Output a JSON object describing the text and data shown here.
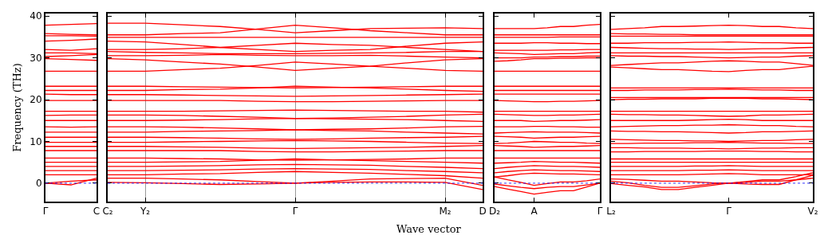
{
  "chart_data": [
    {
      "type": "line",
      "color": "#ff0000",
      "ylabel": "Frequency (THz)",
      "ylim": [
        -4.4,
        40.6
      ],
      "yticks": [
        0,
        10,
        20,
        30,
        40
      ],
      "categories": [
        "Γ",
        null,
        "C"
      ],
      "ref_lines": [
        {
          "axis": "y",
          "value": 0,
          "color": "#0000ff",
          "line_style": "dotted"
        }
      ],
      "series": [
        {
          "values": [
            37.8,
            38,
            38.2
          ]
        },
        {
          "values": [
            35.8,
            35.6,
            35.5
          ]
        },
        {
          "values": [
            35.3,
            35.3,
            35.2
          ]
        },
        {
          "values": [
            34,
            34.2,
            34.5
          ]
        },
        {
          "values": [
            32,
            31.8,
            32.2
          ]
        },
        {
          "values": [
            31.2,
            31.2,
            31
          ]
        },
        {
          "values": [
            30.3,
            30.5,
            30.8
          ]
        },
        {
          "values": [
            29.8,
            29.6,
            29.4
          ]
        },
        {
          "values": [
            26.8,
            26.8,
            26.8
          ]
        },
        {
          "values": [
            23.2,
            23.2,
            23.2
          ]
        },
        {
          "values": [
            22.2,
            22.2,
            22.2
          ]
        },
        {
          "values": [
            21.3,
            21.2,
            21.2
          ]
        },
        {
          "values": [
            19.8,
            19.8,
            19.8
          ]
        },
        {
          "values": [
            17.2,
            17.2,
            17.2
          ]
        },
        {
          "values": [
            16.2,
            16.3,
            16.3
          ]
        },
        {
          "values": [
            15,
            15,
            15
          ]
        },
        {
          "values": [
            13.5,
            13.4,
            13.5
          ]
        },
        {
          "values": [
            12.2,
            12.2,
            12.2
          ]
        },
        {
          "values": [
            11,
            11,
            11
          ]
        },
        {
          "values": [
            9.8,
            9.8,
            9.8
          ]
        },
        {
          "values": [
            8.8,
            8.8,
            8.8
          ]
        },
        {
          "values": [
            7.8,
            7.8,
            7.8
          ]
        },
        {
          "values": [
            6,
            6,
            6
          ]
        },
        {
          "values": [
            5,
            5,
            5
          ]
        },
        {
          "values": [
            4,
            4,
            4
          ]
        },
        {
          "values": [
            3,
            3,
            3
          ]
        },
        {
          "values": [
            2,
            2,
            2
          ]
        },
        {
          "values": [
            0,
            -0.4,
            1.2
          ]
        },
        {
          "values": [
            0,
            0.5,
            0.8
          ]
        }
      ]
    },
    {
      "type": "line",
      "color": "#ff0000",
      "xlabel": "Wave vector",
      "tick_labels": "x",
      "ylim": [
        -4.4,
        40.6
      ],
      "yticks": [
        0,
        10,
        20,
        30,
        40
      ],
      "categories": [
        "C₂",
        "Y₂",
        null,
        null,
        null,
        "Γ",
        null,
        null,
        null,
        "M₂",
        "D"
      ],
      "grid": "x",
      "ref_lines": [
        {
          "axis": "y",
          "value": 0,
          "color": "#0000ff",
          "line_style": "dotted"
        }
      ],
      "series": [
        {
          "values": [
            38.3,
            38.3,
            37.9,
            37.5,
            36.8,
            36,
            36.5,
            37,
            37.1,
            37.2,
            37
          ]
        },
        {
          "values": [
            35.5,
            35.5,
            35.8,
            36,
            36.9,
            37.8,
            37.2,
            36.5,
            36,
            35.5,
            35.5
          ]
        },
        {
          "values": [
            34.9,
            34.9,
            34.9,
            34.9,
            34.9,
            34.9,
            34.9,
            34.9,
            34.9,
            34.9,
            34.9
          ]
        },
        {
          "values": [
            34,
            33.8,
            33.2,
            32.5,
            32,
            31.5,
            31.8,
            32,
            32.8,
            33.5,
            33.8
          ]
        },
        {
          "values": [
            32,
            32,
            32.2,
            32.5,
            33,
            33.5,
            33.2,
            33,
            32.5,
            32,
            31.5
          ]
        },
        {
          "values": [
            31.5,
            31.3,
            31.2,
            31,
            31,
            31,
            31.1,
            31.2,
            31.3,
            31.5,
            31.5
          ]
        },
        {
          "values": [
            30.5,
            30.5,
            30.6,
            30.8,
            30.6,
            30.5,
            30.5,
            30.6,
            30.4,
            30.2,
            30
          ]
        },
        {
          "values": [
            29.8,
            29.5,
            29,
            28.5,
            27.8,
            27,
            27.5,
            28,
            28.8,
            29.5,
            29.8
          ]
        },
        {
          "values": [
            26.8,
            26.8,
            27.2,
            27.5,
            28.2,
            29,
            28.5,
            28,
            27.5,
            27,
            26.8
          ]
        },
        {
          "values": [
            23.2,
            23.2,
            23.1,
            23,
            22.9,
            22.8,
            22.9,
            23,
            23.1,
            23.2,
            23.2
          ]
        },
        {
          "values": [
            22.2,
            22.2,
            22.4,
            22.5,
            22.8,
            23.2,
            23,
            22.8,
            22.5,
            22.2,
            22
          ]
        },
        {
          "values": [
            21.2,
            21.2,
            21.1,
            21,
            20.9,
            20.8,
            20.9,
            21,
            21.1,
            21.2,
            21.3
          ]
        },
        {
          "values": [
            19.8,
            19.8,
            19.8,
            19.8,
            19.6,
            19.5,
            19.5,
            19.6,
            19.7,
            19.8,
            19.8
          ]
        },
        {
          "values": [
            17.2,
            17.2,
            17.2,
            17.3,
            17.4,
            17.5,
            17.4,
            17.3,
            17.2,
            17.2,
            17
          ]
        },
        {
          "values": [
            16.3,
            16.3,
            16.2,
            16,
            15.8,
            15.5,
            15.6,
            15.8,
            16,
            16.3,
            16.5
          ]
        },
        {
          "values": [
            15,
            15,
            15.1,
            15.2,
            15.4,
            15.5,
            15.4,
            15.3,
            15.2,
            15,
            14.8
          ]
        },
        {
          "values": [
            13.5,
            13.5,
            13.4,
            13.2,
            13,
            12.8,
            12.9,
            13,
            13.2,
            13.5,
            13.6
          ]
        },
        {
          "values": [
            12.2,
            12.2,
            12.4,
            12.5,
            12.6,
            12.8,
            12.6,
            12.5,
            12.2,
            12,
            11.8
          ]
        },
        {
          "values": [
            11,
            11,
            10.9,
            10.8,
            10.6,
            10.5,
            10.6,
            10.8,
            10.9,
            11,
            11.2
          ]
        },
        {
          "values": [
            9.8,
            9.8,
            9.9,
            10,
            10.1,
            10.2,
            10.1,
            10,
            9.8,
            9.6,
            9.5
          ]
        },
        {
          "values": [
            8.8,
            8.8,
            8.7,
            8.6,
            8.4,
            8.3,
            8.4,
            8.5,
            8.6,
            8.8,
            9
          ]
        },
        {
          "values": [
            7.8,
            7.8,
            7.8,
            7.8,
            7.6,
            7.5,
            7.5,
            7.6,
            7.7,
            7.8,
            7.8
          ]
        },
        {
          "values": [
            6,
            6,
            5.9,
            5.8,
            5.6,
            5.5,
            5.6,
            5.7,
            5.8,
            6,
            6
          ]
        },
        {
          "values": [
            5,
            5,
            5.1,
            5.2,
            5.5,
            5.8,
            5.6,
            5.4,
            5.2,
            5,
            4.8
          ]
        },
        {
          "values": [
            4,
            4,
            4.1,
            4.2,
            4.4,
            4.5,
            4.4,
            4.3,
            4,
            3.8,
            3.5
          ]
        },
        {
          "values": [
            3,
            3,
            3.1,
            3.2,
            3.4,
            3.5,
            3.4,
            3.3,
            3,
            2.8,
            2.5
          ]
        },
        {
          "values": [
            2,
            2,
            2.2,
            2.3,
            2.6,
            2.8,
            2.6,
            2.4,
            2.1,
            1.8,
            1.2
          ]
        },
        {
          "values": [
            1.2,
            1.2,
            1,
            0.8,
            0.4,
            0,
            0.5,
            1,
            1.1,
            1.2,
            -0.5
          ]
        },
        {
          "values": [
            0.2,
            0.1,
            -0.1,
            -0.3,
            -0.2,
            0,
            0.2,
            0.3,
            0.3,
            0.2,
            -1.5
          ]
        }
      ]
    },
    {
      "type": "line",
      "color": "#ff0000",
      "tick_labels": "x",
      "ylim": [
        -4.4,
        40.6
      ],
      "yticks": [
        0,
        10,
        20,
        30,
        40
      ],
      "categories": [
        "D₂",
        null,
        null,
        "A",
        null,
        null,
        null,
        null,
        "Γ"
      ],
      "ref_lines": [
        {
          "axis": "y",
          "value": 0,
          "color": "#0000ff",
          "line_style": "dotted"
        }
      ],
      "series": [
        {
          "values": [
            37,
            37,
            37,
            37,
            37.2,
            37.5,
            37.5,
            37.8,
            38
          ]
        },
        {
          "values": [
            35.5,
            35.5,
            35.5,
            35.5,
            35.5,
            35.5,
            35.5,
            35.5,
            35.5
          ]
        },
        {
          "values": [
            34.9,
            34.9,
            34.9,
            34.9,
            34.9,
            35,
            35,
            35,
            35
          ]
        },
        {
          "values": [
            33.5,
            33.5,
            33.5,
            33.6,
            33.6,
            33.5,
            33.5,
            33.4,
            33.4
          ]
        },
        {
          "values": [
            31.8,
            31.8,
            31.8,
            31.8,
            31.8,
            31.9,
            31.9,
            32,
            32
          ]
        },
        {
          "values": [
            31.2,
            31.1,
            31,
            30.8,
            30.9,
            31,
            31,
            31.2,
            31.3
          ]
        },
        {
          "values": [
            30,
            30,
            30,
            30.2,
            30.2,
            30.3,
            30.3,
            30.4,
            30.4
          ]
        },
        {
          "values": [
            29.2,
            29.3,
            29.5,
            29.8,
            29.8,
            29.9,
            29.9,
            30,
            30
          ]
        },
        {
          "values": [
            26.8,
            26.8,
            26.8,
            26.8,
            26.8,
            26.8,
            26.8,
            26.8,
            26.8
          ]
        },
        {
          "values": [
            23.2,
            23.2,
            23.2,
            23.2,
            23.2,
            23.2,
            23.2,
            23.2,
            23.2
          ]
        },
        {
          "values": [
            22.2,
            22.2,
            22.2,
            22.2,
            22.2,
            22.2,
            22.2,
            22.2,
            22.2
          ]
        },
        {
          "values": [
            21.3,
            21.3,
            21.3,
            21.3,
            21.3,
            21.3,
            21.3,
            21.3,
            21.3
          ]
        },
        {
          "values": [
            19.8,
            19.7,
            19.6,
            19.5,
            19.5,
            19.6,
            19.6,
            19.7,
            19.8
          ]
        },
        {
          "values": [
            17.2,
            17.2,
            17.2,
            17.2,
            17.2,
            17.2,
            17.2,
            17.2,
            17.2
          ]
        },
        {
          "values": [
            16.5,
            16.4,
            16.3,
            16.2,
            16.2,
            16.3,
            16.3,
            16.4,
            16.5
          ]
        },
        {
          "values": [
            15,
            15,
            15,
            14.8,
            14.9,
            15,
            15,
            15.1,
            15.2
          ]
        },
        {
          "values": [
            13.5,
            13.5,
            13.5,
            13.6,
            13.6,
            13.5,
            13.5,
            13.4,
            13.4
          ]
        },
        {
          "values": [
            12,
            12.1,
            12.2,
            12.3,
            12.2,
            12.2,
            12.2,
            12.1,
            12
          ]
        },
        {
          "values": [
            11.2,
            11.1,
            11,
            10.8,
            10.9,
            11,
            11,
            11.1,
            11.2
          ]
        },
        {
          "values": [
            9.5,
            9.6,
            9.8,
            10,
            9.9,
            9.8,
            9.8,
            9.6,
            9.5
          ]
        },
        {
          "values": [
            9,
            8.9,
            8.8,
            8.6,
            8.7,
            8.8,
            8.8,
            8.9,
            9
          ]
        },
        {
          "values": [
            7.8,
            7.8,
            7.8,
            7.8,
            7.8,
            7.8,
            7.8,
            7.8,
            7.8
          ]
        },
        {
          "values": [
            6,
            6,
            6,
            6,
            6,
            6,
            6,
            6,
            6
          ]
        },
        {
          "values": [
            4.8,
            4.9,
            5,
            5.2,
            5.1,
            5,
            5,
            4.9,
            4.8
          ]
        },
        {
          "values": [
            3.5,
            3.8,
            4,
            4.2,
            4.1,
            4,
            4,
            3.9,
            3.8
          ]
        },
        {
          "values": [
            2.5,
            2.8,
            3,
            3.2,
            3.1,
            3,
            3,
            2.9,
            2.8
          ]
        },
        {
          "values": [
            1.5,
            1.8,
            2.2,
            2.4,
            2.3,
            2.2,
            2.2,
            2.1,
            2
          ]
        },
        {
          "values": [
            1.5,
            0.8,
            0.2,
            -0.5,
            -0.1,
            0.3,
            0.3,
            0.6,
            1
          ]
        },
        {
          "values": [
            -0.2,
            -0.6,
            -1,
            -1.3,
            -1,
            -0.8,
            -0.8,
            -0.4,
            0
          ]
        },
        {
          "values": [
            -0.8,
            -1.4,
            -2,
            -2.6,
            -2.2,
            -1.8,
            -1.8,
            -0.9,
            0
          ]
        }
      ]
    },
    {
      "type": "line",
      "color": "#ff0000",
      "tick_labels": "x",
      "ylim": [
        -4.4,
        40.6
      ],
      "yticks": [
        0,
        10,
        20,
        30,
        40
      ],
      "categories": [
        "L₂",
        null,
        null,
        null,
        null,
        null,
        null,
        "Γ",
        null,
        null,
        null,
        null,
        "V₂"
      ],
      "ref_lines": [
        {
          "axis": "y",
          "value": 0,
          "color": "#0000ff",
          "line_style": "dotted"
        }
      ],
      "series": [
        {
          "values": [
            36.8,
            37,
            37.2,
            37.5,
            37.5,
            37.6,
            37.7,
            37.8,
            37.7,
            37.5,
            37.5,
            37.2,
            37
          ]
        },
        {
          "values": [
            35.8,
            35.7,
            35.7,
            35.6,
            35.6,
            35.5,
            35.5,
            35.5,
            35.5,
            35.5,
            35.5,
            35.5,
            35.5
          ]
        },
        {
          "values": [
            35.2,
            35.2,
            35.2,
            35.2,
            35.2,
            35.2,
            35.2,
            35.2,
            35.2,
            35.2,
            35.2,
            35.2,
            35.2
          ]
        },
        {
          "values": [
            33.5,
            33.5,
            33.6,
            33.6,
            33.6,
            33.7,
            33.7,
            33.8,
            33.7,
            33.6,
            33.6,
            33.5,
            33.5
          ]
        },
        {
          "values": [
            32.5,
            32.4,
            32.3,
            32.2,
            32.2,
            32.1,
            32.1,
            32,
            32.1,
            32.2,
            32.2,
            32.4,
            32.5
          ]
        },
        {
          "values": [
            31.2,
            31.2,
            31.2,
            31.2,
            31.2,
            31.2,
            31.2,
            31.2,
            31.2,
            31.2,
            31.2,
            31.2,
            31.2
          ]
        },
        {
          "values": [
            30.5,
            30.4,
            30.4,
            30.3,
            30.3,
            30.2,
            30.1,
            30,
            30.1,
            30.2,
            30.2,
            30.4,
            30.5
          ]
        },
        {
          "values": [
            28.2,
            28.4,
            28.6,
            28.8,
            28.8,
            29,
            29.2,
            29.3,
            29.2,
            29,
            29,
            28.6,
            28.2
          ]
        },
        {
          "values": [
            27.8,
            27.6,
            27.4,
            27.2,
            27.2,
            27,
            26.8,
            26.7,
            27,
            27.2,
            27.2,
            27.6,
            28
          ]
        },
        {
          "values": [
            22.8,
            22.8,
            22.8,
            22.8,
            22.8,
            22.8,
            22.8,
            22.8,
            22.8,
            22.8,
            22.8,
            22.8,
            22.8
          ]
        },
        {
          "values": [
            22.2,
            22.2,
            22.3,
            22.3,
            22.3,
            22.4,
            22.4,
            22.5,
            22.4,
            22.3,
            22.3,
            22.2,
            22.2
          ]
        },
        {
          "values": [
            20.5,
            20.5,
            20.5,
            20.5,
            20.5,
            20.5,
            20.5,
            20.5,
            20.5,
            20.5,
            20.5,
            20.5,
            20.5
          ]
        },
        {
          "values": [
            20,
            20.1,
            20.1,
            20.2,
            20.2,
            20.2,
            20.3,
            20.3,
            20.3,
            20.2,
            20.2,
            20.1,
            20
          ]
        },
        {
          "values": [
            17.2,
            17.2,
            17.2,
            17.2,
            17.2,
            17.2,
            17.2,
            17.2,
            17.2,
            17.2,
            17.2,
            17.2,
            17.2
          ]
        },
        {
          "values": [
            16.5,
            16.4,
            16.4,
            16.3,
            16.3,
            16.2,
            16.1,
            16,
            16.1,
            16.3,
            16.3,
            16.4,
            16.5
          ]
        },
        {
          "values": [
            15,
            15,
            15,
            15,
            15,
            15.1,
            15.2,
            15.3,
            15.2,
            15,
            15,
            15,
            15
          ]
        },
        {
          "values": [
            13.5,
            13.6,
            13.7,
            13.8,
            13.8,
            13.9,
            13.9,
            14,
            13.9,
            13.8,
            13.8,
            13.6,
            13.5
          ]
        },
        {
          "values": [
            12.5,
            12.4,
            12.4,
            12.3,
            12.3,
            12.2,
            12.1,
            12,
            12.1,
            12.3,
            12.3,
            12.4,
            12.5
          ]
        },
        {
          "values": [
            10.5,
            10.4,
            10.3,
            10.2,
            10.2,
            10.1,
            10.1,
            10,
            10.1,
            10.2,
            10.2,
            10.4,
            10.5
          ]
        },
        {
          "values": [
            9.5,
            9.5,
            9.6,
            9.6,
            9.6,
            9.7,
            9.7,
            9.8,
            9.7,
            9.6,
            9.6,
            9.5,
            9.5
          ]
        },
        {
          "values": [
            8.5,
            8.5,
            8.4,
            8.4,
            8.4,
            8.3,
            8.3,
            8.2,
            8.3,
            8.4,
            8.4,
            8.5,
            8.5
          ]
        },
        {
          "values": [
            7.5,
            7.5,
            7.6,
            7.6,
            7.6,
            7.6,
            7.7,
            7.7,
            7.7,
            7.6,
            7.6,
            7.5,
            7.5
          ]
        },
        {
          "values": [
            5.8,
            5.8,
            5.8,
            5.8,
            5.8,
            5.8,
            5.8,
            5.8,
            5.8,
            5.8,
            5.8,
            5.8,
            5.8
          ]
        },
        {
          "values": [
            5,
            5,
            5,
            5,
            5,
            5,
            5,
            5,
            5,
            5,
            5,
            5,
            5
          ]
        },
        {
          "values": [
            4,
            4,
            4,
            4,
            4,
            4.1,
            4.1,
            4.2,
            4.1,
            4,
            4,
            4,
            4
          ]
        },
        {
          "values": [
            3,
            3,
            3,
            3,
            3,
            3.1,
            3.1,
            3.2,
            3.1,
            3,
            3,
            3,
            3
          ]
        },
        {
          "values": [
            2,
            2,
            2,
            2,
            2,
            2.1,
            2.2,
            2.3,
            2.2,
            2,
            2,
            2,
            2
          ]
        },
        {
          "values": [
            1,
            0.9,
            0.7,
            0.5,
            0.5,
            0.3,
            0.1,
            0,
            0.4,
            0.8,
            0.8,
            1.6,
            2.5
          ]
        },
        {
          "values": [
            0.5,
            0.1,
            -0.5,
            -1,
            -1,
            -0.6,
            -0.2,
            0,
            -0.2,
            -0.3,
            -0.3,
            0.8,
            1.9
          ]
        },
        {
          "values": [
            -0.1,
            -0.5,
            -0.9,
            -1.5,
            -1.5,
            -1,
            -0.5,
            0,
            0.2,
            0.5,
            0.5,
            0.8,
            1.2
          ]
        }
      ]
    }
  ]
}
